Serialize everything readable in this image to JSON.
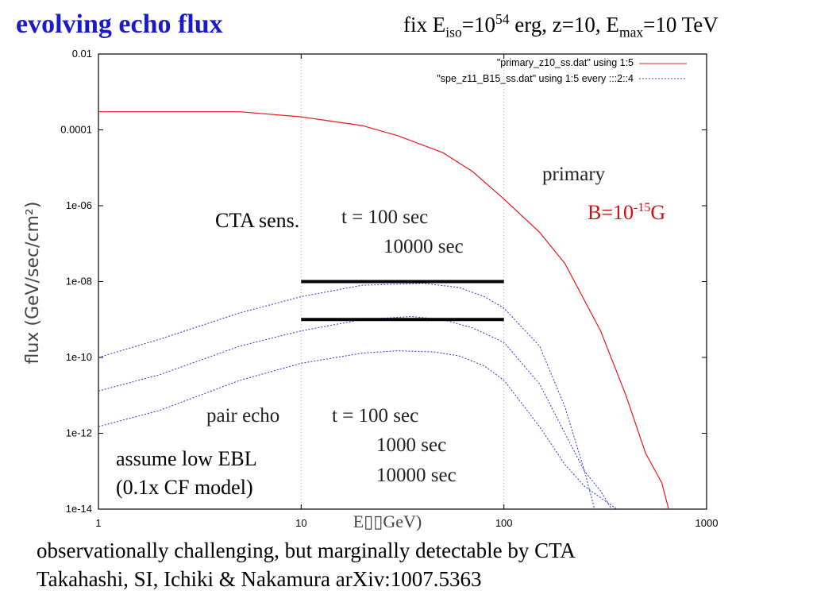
{
  "title": "evolving echo flux",
  "params": {
    "p1": "fix E",
    "iso": "iso",
    "p2": "=10",
    "exp": "54",
    "p3": " erg, z=10, E",
    "max": "max",
    "p4": "=10 TeV"
  },
  "annotations": {
    "cta_sens": "CTA sens.",
    "cta_t1": "t = 100 sec",
    "cta_t2": "10000 sec",
    "primary": "primary",
    "b_base": "B=10",
    "b_exp": "-15",
    "b_unit": "G",
    "pair_echo": "pair echo",
    "echo_t1": "t = 100 sec",
    "echo_t2": "1000 sec",
    "echo_t3": "10000 sec",
    "ebl_line1": "assume low EBL",
    "ebl_line2": "(0.1x CF model)"
  },
  "footer": {
    "line1": "observationally challenging, but marginally detectable by CTA",
    "line2": "Takahashi, SI, Ichiki & Nakamura arXiv:1007.5363"
  },
  "colors": {
    "title": "#1a1ac8",
    "primary": "#e41a1c",
    "echo": "#3030d0",
    "b_label": "#d01010"
  },
  "chart_data": {
    "type": "line",
    "xscale": "log",
    "yscale": "log",
    "xlim": [
      1,
      1000
    ],
    "ylim": [
      1e-14,
      0.01
    ],
    "xlabel": "E▯▯GeV)",
    "ylabel": "flux (GeV/sec/cm²)",
    "xticks": [
      "1",
      "10",
      "100",
      "1000"
    ],
    "yticks": [
      "0.01",
      "0.0001",
      "1e-06",
      "1e-08",
      "1e-10",
      "1e-12",
      "1e-14"
    ],
    "grid": "at x=10 and x=100, dotted",
    "legend": "top-right",
    "series": [
      {
        "name": "\"primary_z10_ss.dat\" using 1:5",
        "color": "#e41a1c",
        "style": "solid",
        "x": [
          1,
          3,
          5,
          10,
          20,
          30,
          50,
          70,
          100,
          150,
          200,
          300,
          400,
          500,
          600,
          650
        ],
        "y": [
          0.0003,
          0.0003,
          0.0003,
          0.00022,
          0.00013,
          7e-05,
          2.5e-05,
          8e-06,
          1.5e-06,
          2e-07,
          3e-08,
          5e-10,
          1e-11,
          3e-13,
          5e-14,
          1e-14
        ]
      },
      {
        "name": "\"spe_z11_B15_ss.dat\" using 1:5 every :::2::4",
        "color": "#3030d0",
        "style": "dotted",
        "x": [
          1,
          2,
          5,
          10,
          20,
          40,
          60,
          80,
          100,
          150,
          200,
          250,
          280
        ],
        "y": [
          1e-10,
          3e-10,
          1.5e-09,
          4e-09,
          8e-09,
          9e-09,
          7e-09,
          4e-09,
          2e-09,
          2e-10,
          5e-12,
          1e-13,
          1e-14
        ]
      },
      {
        "name": "",
        "color": "#3030d0",
        "style": "dotted",
        "x": [
          1,
          2,
          5,
          10,
          20,
          35,
          50,
          70,
          100,
          150,
          200,
          250,
          300,
          340
        ],
        "y": [
          1.3e-11,
          3.5e-11,
          2e-10,
          5e-10,
          1e-09,
          1.2e-09,
          1e-09,
          6e-10,
          2.5e-10,
          2e-11,
          1e-12,
          1e-13,
          3e-14,
          1e-14
        ]
      },
      {
        "name": "",
        "color": "#3030d0",
        "style": "dotted",
        "x": [
          1,
          2,
          5,
          10,
          20,
          30,
          45,
          60,
          80,
          100,
          150,
          200,
          250,
          300,
          360
        ],
        "y": [
          1.5e-12,
          4e-12,
          2.5e-11,
          7e-11,
          1.3e-10,
          1.5e-10,
          1.4e-10,
          1.1e-10,
          6e-11,
          2.5e-11,
          1.5e-12,
          1.5e-13,
          4e-14,
          2e-14,
          1e-14
        ]
      },
      {
        "name": "",
        "color": "#000000",
        "style": "thick",
        "x": [
          10,
          100
        ],
        "y": [
          1e-08,
          1e-08
        ]
      },
      {
        "name": "",
        "color": "#000000",
        "style": "thick",
        "x": [
          10,
          100
        ],
        "y": [
          1e-09,
          1e-09
        ]
      }
    ]
  }
}
